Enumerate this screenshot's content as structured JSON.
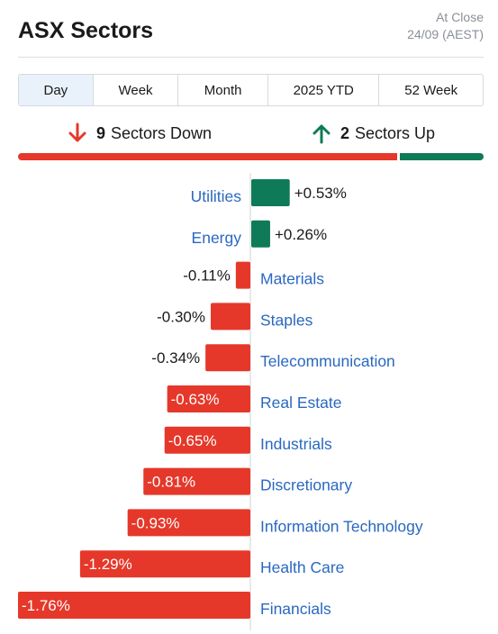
{
  "header": {
    "title": "ASX Sectors",
    "status_line1": "At Close",
    "status_line2": "24/09 (AEST)"
  },
  "tabs": [
    {
      "label": "Day",
      "active": true
    },
    {
      "label": "Week",
      "active": false
    },
    {
      "label": "Month",
      "active": false
    },
    {
      "label": "2025 YTD",
      "active": false
    },
    {
      "label": "52 Week",
      "active": false
    }
  ],
  "summary": {
    "down_count": "9",
    "down_label": "Sectors Down",
    "up_count": "2",
    "up_label": "Sectors Up"
  },
  "colors": {
    "up": "#0f7a57",
    "down": "#e5382a",
    "label": "#2a68c0"
  },
  "chart_data": {
    "type": "bar",
    "orientation": "horizontal-diverging",
    "categories": [
      "Utilities",
      "Energy",
      "Materials",
      "Staples",
      "Telecommunication",
      "Real Estate",
      "Industrials",
      "Discretionary",
      "Information Technology",
      "Health Care",
      "Financials"
    ],
    "values": [
      0.53,
      0.26,
      -0.11,
      -0.3,
      -0.34,
      -0.63,
      -0.65,
      -0.81,
      -0.93,
      -1.29,
      -1.76
    ],
    "labels": [
      "+0.53%",
      "+0.26%",
      "-0.11%",
      "-0.30%",
      "-0.34%",
      "-0.63%",
      "-0.65%",
      "-0.81%",
      "-0.93%",
      "-1.29%",
      "-1.76%"
    ],
    "unit": "%"
  }
}
